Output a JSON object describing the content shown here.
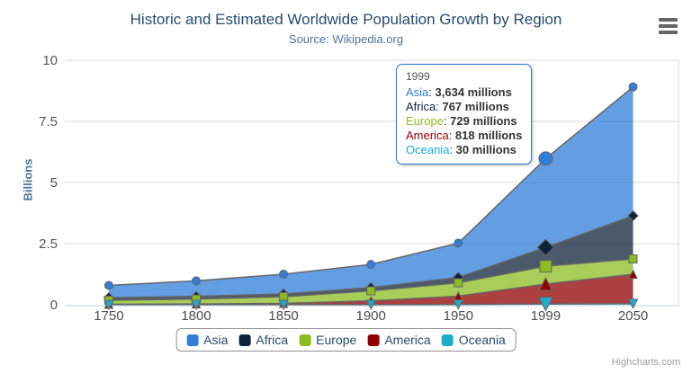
{
  "header": {
    "title": "Historic and Estimated Worldwide Population Growth by Region",
    "subtitle": "Source: Wikipedia.org"
  },
  "y_axis": {
    "title": "Billions",
    "tick_labels": [
      "0",
      "2.5",
      "5",
      "7.5",
      "10"
    ]
  },
  "x_axis": {
    "categories": [
      "1750",
      "1800",
      "1850",
      "1900",
      "1950",
      "1999",
      "2050"
    ]
  },
  "chart_data": {
    "type": "area",
    "stacking": "normal",
    "title": "Historic and Estimated Worldwide Population Growth by Region",
    "subtitle": "Source: Wikipedia.org",
    "categories": [
      "1750",
      "1800",
      "1850",
      "1900",
      "1950",
      "1999",
      "2050"
    ],
    "unit": "millions",
    "ylabel": "Billions",
    "ylim": [
      0,
      10
    ],
    "yticks": [
      0,
      2.5,
      5,
      7.5,
      10
    ],
    "grid": "horizontal",
    "legend_position": "bottom",
    "line_color": "#666666",
    "fill_opacity": 0.75,
    "hovered_category": "1999",
    "hovered_index": 5,
    "series": [
      {
        "name": "Asia",
        "color": "#2f7ed8",
        "marker": "circle",
        "values": [
          502,
          635,
          809,
          947,
          1402,
          3634,
          5268
        ]
      },
      {
        "name": "Africa",
        "color": "#0d233a",
        "marker": "diamond",
        "values": [
          106,
          107,
          111,
          133,
          221,
          767,
          1766
        ]
      },
      {
        "name": "Europe",
        "color": "#8bbc21",
        "marker": "square",
        "values": [
          163,
          203,
          276,
          408,
          547,
          729,
          628
        ]
      },
      {
        "name": "America",
        "color": "#910000",
        "marker": "triangle",
        "values": [
          18,
          31,
          54,
          156,
          339,
          818,
          1201
        ]
      },
      {
        "name": "Oceania",
        "color": "#1aadce",
        "marker": "triangle-down",
        "values": [
          2,
          2,
          2,
          6,
          13,
          30,
          46
        ]
      }
    ]
  },
  "tooltip": {
    "header": "1999",
    "rows": [
      {
        "name": "Asia",
        "color": "#2f7ed8",
        "value": "3,634 millions"
      },
      {
        "name": "Africa",
        "color": "#0d233a",
        "value": "767 millions"
      },
      {
        "name": "Europe",
        "color": "#8bbc21",
        "value": "729 millions"
      },
      {
        "name": "America",
        "color": "#910000",
        "value": "818 millions"
      },
      {
        "name": "Oceania",
        "color": "#1aadce",
        "value": "30 millions"
      }
    ]
  },
  "legend": {
    "items": [
      {
        "label": "Asia",
        "color": "#2f7ed8"
      },
      {
        "label": "Africa",
        "color": "#0d233a"
      },
      {
        "label": "Europe",
        "color": "#8bbc21"
      },
      {
        "label": "America",
        "color": "#910000"
      },
      {
        "label": "Oceania",
        "color": "#1aadce"
      }
    ]
  },
  "credit": "Highcharts.com",
  "icons": {
    "export_menu": "hamburger-icon"
  },
  "colors": {
    "title": "#274b6d",
    "subtitle": "#4d759e",
    "axis_label": "#4d4d4d",
    "y_axis_label": "#555555",
    "gridline": "#d8d8d8",
    "axis_line": "#c0d0e0",
    "tooltip_border": "#2f7ed8",
    "legend_border": "#909090"
  }
}
